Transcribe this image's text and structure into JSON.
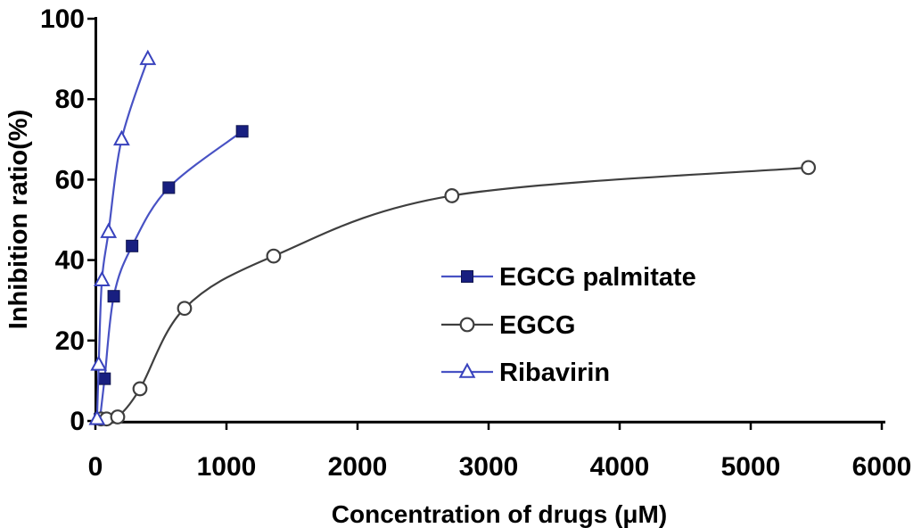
{
  "figure": {
    "background_color": "#ffffff",
    "text_color": "#000000",
    "axis_color": "#000000"
  },
  "chart_data": {
    "type": "line",
    "title": "",
    "xlabel": "Concentration of drugs (μM)",
    "ylabel": "Inhibition ratio(%)",
    "xlim": [
      0,
      6000
    ],
    "ylim": [
      0,
      100
    ],
    "x_ticks": [
      0,
      1000,
      2000,
      3000,
      4000,
      5000,
      6000
    ],
    "y_ticks": [
      0,
      20,
      40,
      60,
      80,
      100
    ],
    "grid": false,
    "legend_position": "inside-center-right",
    "series": [
      {
        "name": "EGCG palmitate",
        "marker": "filled-square",
        "line_color": "#4852c4",
        "marker_fill": "#181f80",
        "marker_edge": "#10154f",
        "x": [
          35,
          70,
          140,
          280,
          560,
          1120
        ],
        "y": [
          0.5,
          10.5,
          31,
          43.5,
          58,
          72
        ]
      },
      {
        "name": "EGCG",
        "marker": "open-circle",
        "line_color": "#3f3f3f",
        "marker_fill": "#ffffff",
        "marker_edge": "#3f3f3f",
        "x": [
          42.5,
          85,
          170,
          340,
          680,
          1360,
          2720,
          5440
        ],
        "y": [
          0.5,
          0.5,
          1,
          8,
          28,
          41,
          56,
          63
        ]
      },
      {
        "name": "Ribavirin",
        "marker": "open-triangle",
        "line_color": "#4852c4",
        "marker_fill": "#ffffff",
        "marker_edge": "#3842bd",
        "x": [
          12.5,
          25,
          50,
          100,
          200,
          400
        ],
        "y": [
          0.5,
          14,
          35,
          47,
          70,
          90
        ]
      }
    ]
  }
}
